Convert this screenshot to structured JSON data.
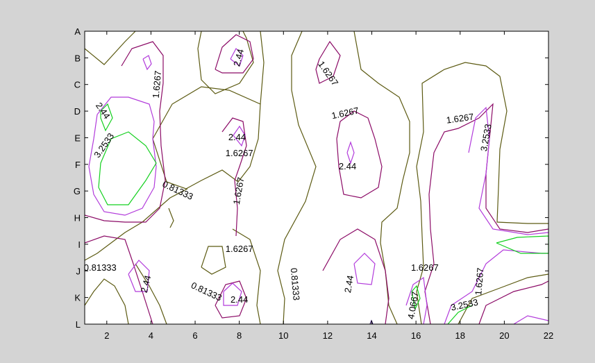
{
  "chart_data": {
    "type": "contour",
    "title": "",
    "xlabel": "",
    "ylabel": "",
    "xlim": [
      1,
      22
    ],
    "x_ticks": [
      2,
      4,
      6,
      8,
      10,
      12,
      14,
      16,
      18,
      20,
      22
    ],
    "y_categories": [
      "A",
      "B",
      "C",
      "D",
      "E",
      "F",
      "G",
      "H",
      "I",
      "J",
      "K",
      "L"
    ],
    "grid": false,
    "levels": [
      {
        "value": 0.81333,
        "color": "#5c5a12"
      },
      {
        "value": 1.6267,
        "color": "#8b0a66"
      },
      {
        "value": 2.44,
        "color": "#b23bdb"
      },
      {
        "value": 3.2533,
        "color": "#13d01e"
      }
    ],
    "contour_labels": [
      {
        "text": "2.44",
        "x": 8.0,
        "y": 1.0,
        "rotate": -75
      },
      {
        "text": "1.6267",
        "x": 4.3,
        "y": 2.0,
        "rotate": -85
      },
      {
        "text": "1.6267",
        "x": 12.0,
        "y": 1.6,
        "rotate": 55
      },
      {
        "text": "2.44",
        "x": 1.8,
        "y": 3.0,
        "rotate": 55
      },
      {
        "text": "1.6267",
        "x": 12.8,
        "y": 3.1,
        "rotate": -12
      },
      {
        "text": "1.6267",
        "x": 18.0,
        "y": 3.3,
        "rotate": -8
      },
      {
        "text": "3.2533",
        "x": 1.9,
        "y": 4.3,
        "rotate": -55
      },
      {
        "text": "2.44",
        "x": 7.9,
        "y": 4.0,
        "rotate": 0
      },
      {
        "text": "1.6267",
        "x": 8.0,
        "y": 4.6,
        "rotate": 0
      },
      {
        "text": "3.2533",
        "x": 19.2,
        "y": 4.0,
        "rotate": -80
      },
      {
        "text": "2.44",
        "x": 12.9,
        "y": 5.1,
        "rotate": 0
      },
      {
        "text": "0.81333",
        "x": 5.2,
        "y": 6.0,
        "rotate": 25
      },
      {
        "text": "1.6267",
        "x": 8.0,
        "y": 6.0,
        "rotate": -80
      },
      {
        "text": "1.6267",
        "x": 8.0,
        "y": 8.2,
        "rotate": 0
      },
      {
        "text": "0.81333",
        "x": 1.7,
        "y": 8.9,
        "rotate": 0
      },
      {
        "text": "1.6267",
        "x": 16.4,
        "y": 8.9,
        "rotate": 0
      },
      {
        "text": "0.81333",
        "x": 10.5,
        "y": 9.5,
        "rotate": 85
      },
      {
        "text": "2.44",
        "x": 3.8,
        "y": 9.5,
        "rotate": -75
      },
      {
        "text": "2.44",
        "x": 13.0,
        "y": 9.5,
        "rotate": -80
      },
      {
        "text": "1.6267",
        "x": 18.9,
        "y": 9.4,
        "rotate": -85
      },
      {
        "text": "0.81333",
        "x": 6.5,
        "y": 9.8,
        "rotate": 25
      },
      {
        "text": "2.44",
        "x": 8.0,
        "y": 10.1,
        "rotate": 0
      },
      {
        "text": "4.0667",
        "x": 15.9,
        "y": 10.3,
        "rotate": -80
      },
      {
        "text": "3.2533",
        "x": 18.2,
        "y": 10.3,
        "rotate": -12
      }
    ]
  },
  "colors": {
    "figure_background": "#d4d4d4",
    "axes_background": "#ffffff"
  }
}
